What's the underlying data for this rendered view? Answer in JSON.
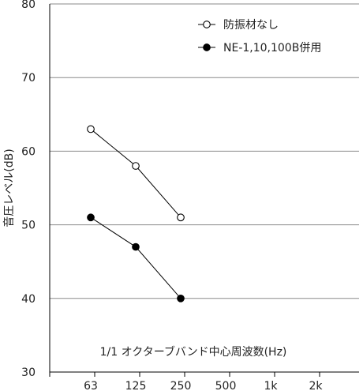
{
  "chart_data": {
    "type": "line",
    "xlabel": "1/1 オクターブバンド中心周波数(Hz)",
    "ylabel": "音圧レベル(dB)",
    "ylim": [
      30,
      80
    ],
    "yticks": [
      "30",
      "40",
      "50",
      "60",
      "70",
      "80"
    ],
    "categories": [
      "63",
      "125",
      "250",
      "500",
      "1k",
      "2k"
    ],
    "grid": "horizontal",
    "legend_position": "top-right",
    "series": [
      {
        "name": "防振材なし",
        "marker": "open-circle",
        "color": "#000000",
        "x": [
          "63",
          "125",
          "250"
        ],
        "values": [
          63,
          58,
          51
        ]
      },
      {
        "name": "NE-1,10,100B併用",
        "marker": "filled-circle",
        "color": "#000000",
        "x": [
          "63",
          "125",
          "250"
        ],
        "values": [
          51,
          47,
          40
        ]
      }
    ]
  }
}
